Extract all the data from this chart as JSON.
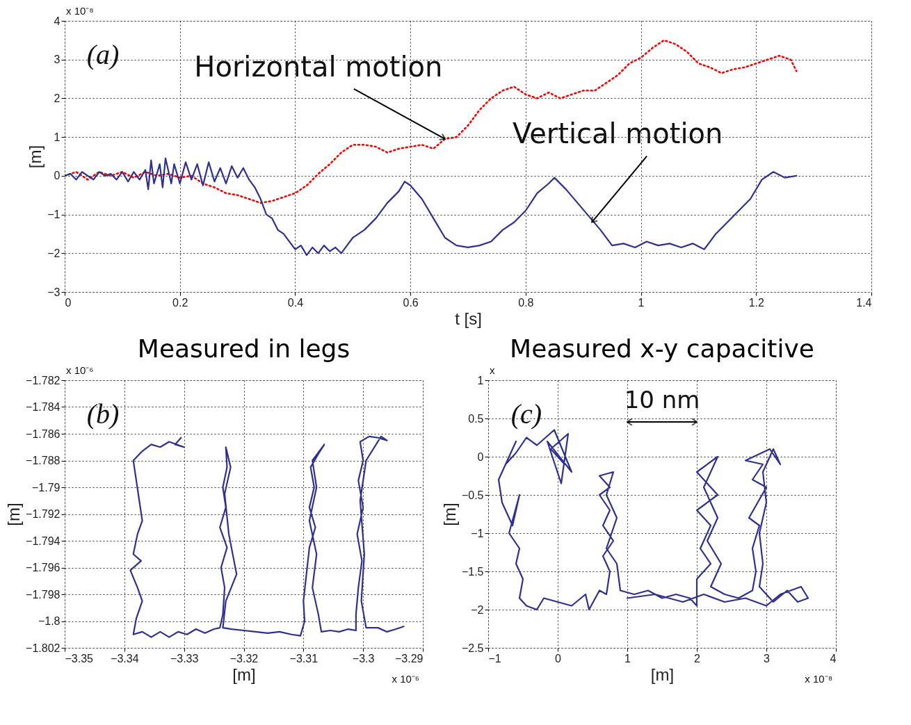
{
  "chart_data": [
    {
      "type": "line",
      "xlabel": "t [s]",
      "ylabel": "[m]",
      "xlim": [
        0,
        1.4
      ],
      "xticks": [
        0,
        0.2,
        0.4,
        0.6,
        0.8,
        1,
        1.2,
        1.4
      ],
      "ylim": [
        -3,
        4
      ],
      "yticks": [
        -3,
        -2,
        -1,
        0,
        1,
        2,
        3,
        4
      ],
      "grid": true,
      "annotations": [
        "(a)",
        "x 10⁻⁸",
        {
          "text": "Horizontal motion",
          "x": 0.66,
          "y": 0.95
        },
        {
          "text": "Vertical motion",
          "x": 0.915,
          "y": -1.2
        }
      ],
      "series": [
        {
          "color": "#ff0000",
          "line_style": "dotted",
          "x": [
            0,
            0.02,
            0.04,
            0.06,
            0.08,
            0.1,
            0.12,
            0.14,
            0.16,
            0.18,
            0.2,
            0.22,
            0.24,
            0.26,
            0.28,
            0.3,
            0.32,
            0.34,
            0.36,
            0.38,
            0.4,
            0.42,
            0.44,
            0.46,
            0.48,
            0.5,
            0.52,
            0.54,
            0.56,
            0.58,
            0.6,
            0.62,
            0.64,
            0.66,
            0.68,
            0.7,
            0.72,
            0.74,
            0.76,
            0.78,
            0.8,
            0.82,
            0.84,
            0.86,
            0.88,
            0.9,
            0.92,
            0.94,
            0.96,
            0.98,
            1.0,
            1.02,
            1.04,
            1.06,
            1.08,
            1.1,
            1.12,
            1.14,
            1.16,
            1.18,
            1.2,
            1.22,
            1.24,
            1.26,
            1.27
          ],
          "values": [
            0,
            0.1,
            -0.1,
            0.1,
            0,
            0.1,
            -0.05,
            0.1,
            0,
            0.05,
            -0.05,
            0,
            -0.2,
            -0.3,
            -0.45,
            -0.5,
            -0.6,
            -0.7,
            -0.65,
            -0.55,
            -0.45,
            -0.25,
            0.05,
            0.3,
            0.6,
            0.8,
            0.8,
            0.75,
            0.6,
            0.7,
            0.75,
            0.8,
            0.7,
            0.95,
            1.0,
            1.3,
            1.7,
            2.0,
            2.2,
            2.3,
            2.1,
            2.0,
            2.15,
            2.0,
            2.1,
            2.2,
            2.2,
            2.4,
            2.6,
            2.9,
            3.05,
            3.3,
            3.5,
            3.4,
            3.2,
            2.9,
            2.8,
            2.65,
            2.75,
            2.8,
            2.9,
            3.0,
            3.1,
            3.0,
            2.7
          ]
        },
        {
          "color": "#2e3192",
          "line_style": "solid",
          "x": [
            0,
            0.01,
            0.02,
            0.03,
            0.04,
            0.05,
            0.06,
            0.07,
            0.08,
            0.09,
            0.1,
            0.11,
            0.12,
            0.13,
            0.14,
            0.145,
            0.15,
            0.155,
            0.165,
            0.17,
            0.175,
            0.185,
            0.19,
            0.2,
            0.21,
            0.22,
            0.23,
            0.24,
            0.25,
            0.26,
            0.27,
            0.28,
            0.29,
            0.3,
            0.31,
            0.32,
            0.33,
            0.34,
            0.35,
            0.36,
            0.37,
            0.38,
            0.39,
            0.4,
            0.41,
            0.42,
            0.43,
            0.44,
            0.45,
            0.46,
            0.47,
            0.48,
            0.49,
            0.5,
            0.52,
            0.54,
            0.56,
            0.58,
            0.59,
            0.6,
            0.62,
            0.64,
            0.66,
            0.68,
            0.7,
            0.72,
            0.74,
            0.76,
            0.78,
            0.8,
            0.82,
            0.84,
            0.85,
            0.87,
            0.89,
            0.91,
            0.93,
            0.95,
            0.97,
            0.99,
            1.01,
            1.03,
            1.05,
            1.07,
            1.09,
            1.11,
            1.13,
            1.15,
            1.17,
            1.19,
            1.21,
            1.23,
            1.25,
            1.27
          ],
          "values": [
            0,
            0.05,
            -0.1,
            0.1,
            0,
            -0.1,
            0.1,
            0,
            0.05,
            -0.1,
            0.1,
            -0.15,
            0.1,
            -0.1,
            0.15,
            -0.35,
            0.4,
            -0.2,
            0.3,
            -0.3,
            0.45,
            -0.2,
            0.3,
            -0.2,
            0.35,
            -0.1,
            0.3,
            -0.25,
            0.35,
            -0.15,
            0.2,
            -0.2,
            0.25,
            -0.05,
            0.2,
            -0.1,
            -0.3,
            -0.6,
            -1.0,
            -1.1,
            -1.4,
            -1.5,
            -1.7,
            -1.9,
            -1.8,
            -2.05,
            -1.85,
            -2.0,
            -1.8,
            -1.95,
            -1.85,
            -2.0,
            -1.8,
            -1.6,
            -1.4,
            -1.1,
            -0.7,
            -0.4,
            -0.15,
            -0.25,
            -0.6,
            -1.1,
            -1.6,
            -1.8,
            -1.85,
            -1.8,
            -1.7,
            -1.4,
            -1.2,
            -0.9,
            -0.45,
            -0.2,
            -0.05,
            -0.35,
            -0.7,
            -1.05,
            -1.4,
            -1.8,
            -1.75,
            -1.85,
            -1.7,
            -1.8,
            -1.75,
            -1.85,
            -1.75,
            -1.9,
            -1.5,
            -1.2,
            -0.9,
            -0.6,
            -0.1,
            0.1,
            -0.05,
            0
          ]
        }
      ]
    },
    {
      "type": "line",
      "title": "Measured in legs",
      "xlabel": "[m]",
      "ylabel": "[m]",
      "xlim": [
        -3.35,
        -3.29
      ],
      "xticks": [
        -3.35,
        -3.34,
        -3.33,
        -3.32,
        -3.31,
        -3.3,
        -3.29
      ],
      "ylim": [
        -1.802,
        -1.782
      ],
      "yticks": [
        -1.802,
        -1.8,
        -1.798,
        -1.796,
        -1.794,
        -1.792,
        -1.79,
        -1.788,
        -1.786,
        -1.784,
        -1.782
      ],
      "grid": true,
      "annotations": [
        "(b)",
        "x 10⁻⁶",
        "x 10⁻⁶"
      ],
      "series": [
        {
          "color": "#2e3192",
          "line_style": "solid",
          "x": [
            -3.3305,
            -3.3315,
            -3.33,
            -3.3325,
            -3.334,
            -3.3355,
            -3.337,
            -3.3385,
            -3.338,
            -3.3375,
            -3.337,
            -3.3378,
            -3.3385,
            -3.3372,
            -3.339,
            -3.3378,
            -3.337,
            -3.338,
            -3.3385,
            -3.337,
            -3.3355,
            -3.334,
            -3.3325,
            -3.331,
            -3.3295,
            -3.328,
            -3.3265,
            -3.325,
            -3.324,
            -3.3235,
            -3.3232,
            -3.3238,
            -3.3228,
            -3.324,
            -3.323,
            -3.3235,
            -3.3228,
            -3.323,
            -3.3222,
            -3.3232,
            -3.3225,
            -3.3212,
            -3.323,
            -3.3235,
            -3.322,
            -3.32,
            -3.318,
            -3.316,
            -3.314,
            -3.312,
            -3.3105,
            -3.3098,
            -3.31,
            -3.3095,
            -3.309,
            -3.308,
            -3.309,
            -3.3082,
            -3.3088,
            -3.3075,
            -3.3065,
            -3.3085,
            -3.3078,
            -3.309,
            -3.3078,
            -3.3085,
            -3.3075,
            -3.307,
            -3.3055,
            -3.304,
            -3.3025,
            -3.3012,
            -3.3012,
            -3.3008,
            -3.3002,
            -3.301,
            -3.3,
            -3.3008,
            -3.3,
            -3.3005,
            -3.299,
            -3.2975,
            -3.296,
            -3.297,
            -3.2995,
            -3.3005,
            -3.2998,
            -3.3003,
            -3.2995,
            -3.2975,
            -3.296,
            -3.2945,
            -3.2932
          ],
          "values": [
            -1.7863,
            -1.7868,
            -1.787,
            -1.7866,
            -1.787,
            -1.7868,
            -1.7873,
            -1.788,
            -1.7895,
            -1.791,
            -1.7925,
            -1.7935,
            -1.795,
            -1.7955,
            -1.7962,
            -1.7975,
            -1.7985,
            -1.7998,
            -1.801,
            -1.8008,
            -1.8012,
            -1.8008,
            -1.8012,
            -1.8008,
            -1.801,
            -1.8006,
            -1.8009,
            -1.8006,
            -1.8005,
            -1.7995,
            -1.7975,
            -1.796,
            -1.7945,
            -1.793,
            -1.7915,
            -1.79,
            -1.7885,
            -1.787,
            -1.7885,
            -1.7905,
            -1.7935,
            -1.7965,
            -1.7985,
            -1.8005,
            -1.8006,
            -1.8007,
            -1.8008,
            -1.8009,
            -1.8008,
            -1.801,
            -1.8011,
            -1.8,
            -1.7985,
            -1.7965,
            -1.7945,
            -1.793,
            -1.7915,
            -1.79,
            -1.7885,
            -1.7875,
            -1.7868,
            -1.788,
            -1.79,
            -1.7925,
            -1.795,
            -1.7975,
            -1.7995,
            -1.8008,
            -1.8007,
            -1.8008,
            -1.8006,
            -1.8007,
            -1.7995,
            -1.7975,
            -1.7955,
            -1.7935,
            -1.7915,
            -1.7895,
            -1.788,
            -1.7866,
            -1.7862,
            -1.7863,
            -1.7865,
            -1.7862,
            -1.788,
            -1.791,
            -1.795,
            -1.7985,
            -1.8005,
            -1.8005,
            -1.8008,
            -1.8006,
            -1.8004
          ]
        }
      ]
    },
    {
      "type": "line",
      "title": "Measured x-y capacitive",
      "xlabel": "[m]",
      "ylabel": "[m]",
      "xlim": [
        -1,
        4
      ],
      "xticks": [
        -1,
        0,
        1,
        2,
        3,
        4
      ],
      "ylim": [
        -2.5,
        1
      ],
      "yticks": [
        -2.5,
        -2,
        -1.5,
        -1,
        -0.5,
        0,
        0.5,
        1
      ],
      "grid": true,
      "annotations": [
        "(c)",
        "x",
        "x 10⁻⁸",
        "10 nm"
      ],
      "series": [
        {
          "color": "#2e3192",
          "line_style": "solid",
          "x": [
            0,
            0.1,
            -0.1,
            0.15,
            0.05,
            -0.15,
            0.2,
            -0.05,
            -0.3,
            -0.45,
            -0.6,
            -0.75,
            -0.6,
            -0.85,
            -0.8,
            -0.65,
            -0.55,
            -0.7,
            -0.55,
            -0.6,
            -0.5,
            -0.55,
            -0.45,
            -0.3,
            -0.2,
            0,
            0.2,
            0.4,
            0.45,
            0.6,
            0.7,
            0.75,
            0.65,
            0.8,
            0.65,
            0.75,
            0.6,
            0.75,
            0.6,
            0.8,
            0.7,
            0.85,
            0.7,
            0.85,
            0.9,
            1.1,
            1.3,
            1.5,
            1.7,
            1.9,
            2.0,
            2.0,
            2.2,
            2.05,
            2.2,
            2.0,
            2.3,
            2.0,
            2.3,
            2.1,
            2.3,
            2.15,
            2.35,
            2.2,
            2.4,
            2.6,
            2.8,
            2.85,
            2.8,
            2.9,
            2.75,
            3.0,
            2.8,
            2.95,
            2.7,
            3.05,
            3.2,
            3.1,
            2.95,
            3.0,
            2.9,
            2.95,
            2.9,
            3.1,
            3.3,
            3.45,
            3.6,
            3.5,
            3.2,
            3.0,
            2.7,
            2.4,
            2.1,
            1.8,
            1.4,
            1.0
          ],
          "values": [
            0,
            -0.1,
            0.1,
            0.3,
            -0.35,
            0.2,
            -0.2,
            0.35,
            0.15,
            0.25,
            0.05,
            -0.1,
            0.2,
            -0.3,
            -0.6,
            -0.9,
            -0.5,
            -1.0,
            -1.2,
            -1.4,
            -1.6,
            -1.85,
            -1.95,
            -2.0,
            -1.85,
            -1.9,
            -1.95,
            -1.8,
            -2.0,
            -1.75,
            -1.8,
            -1.5,
            -1.3,
            -1.1,
            -0.9,
            -0.7,
            -0.5,
            -0.4,
            -0.25,
            -0.2,
            -0.5,
            -0.8,
            -1.2,
            -1.4,
            -1.75,
            -1.8,
            -1.75,
            -1.85,
            -1.8,
            -1.85,
            -1.95,
            -1.6,
            -1.4,
            -1.2,
            -0.9,
            -0.7,
            -0.5,
            -0.2,
            0.0,
            -0.4,
            -0.8,
            -1.1,
            -1.4,
            -1.7,
            -1.8,
            -1.85,
            -1.75,
            -1.5,
            -1.2,
            -0.9,
            -0.8,
            -0.4,
            -0.3,
            -0.1,
            -0.05,
            0.1,
            -0.1,
            0.1,
            -0.2,
            -0.6,
            -1.0,
            -1.4,
            -1.7,
            -1.9,
            -1.75,
            -1.9,
            -1.85,
            -1.7,
            -1.8,
            -1.95,
            -1.85,
            -1.9,
            -1.8,
            -1.9,
            -1.8,
            -1.85
          ]
        }
      ]
    }
  ]
}
